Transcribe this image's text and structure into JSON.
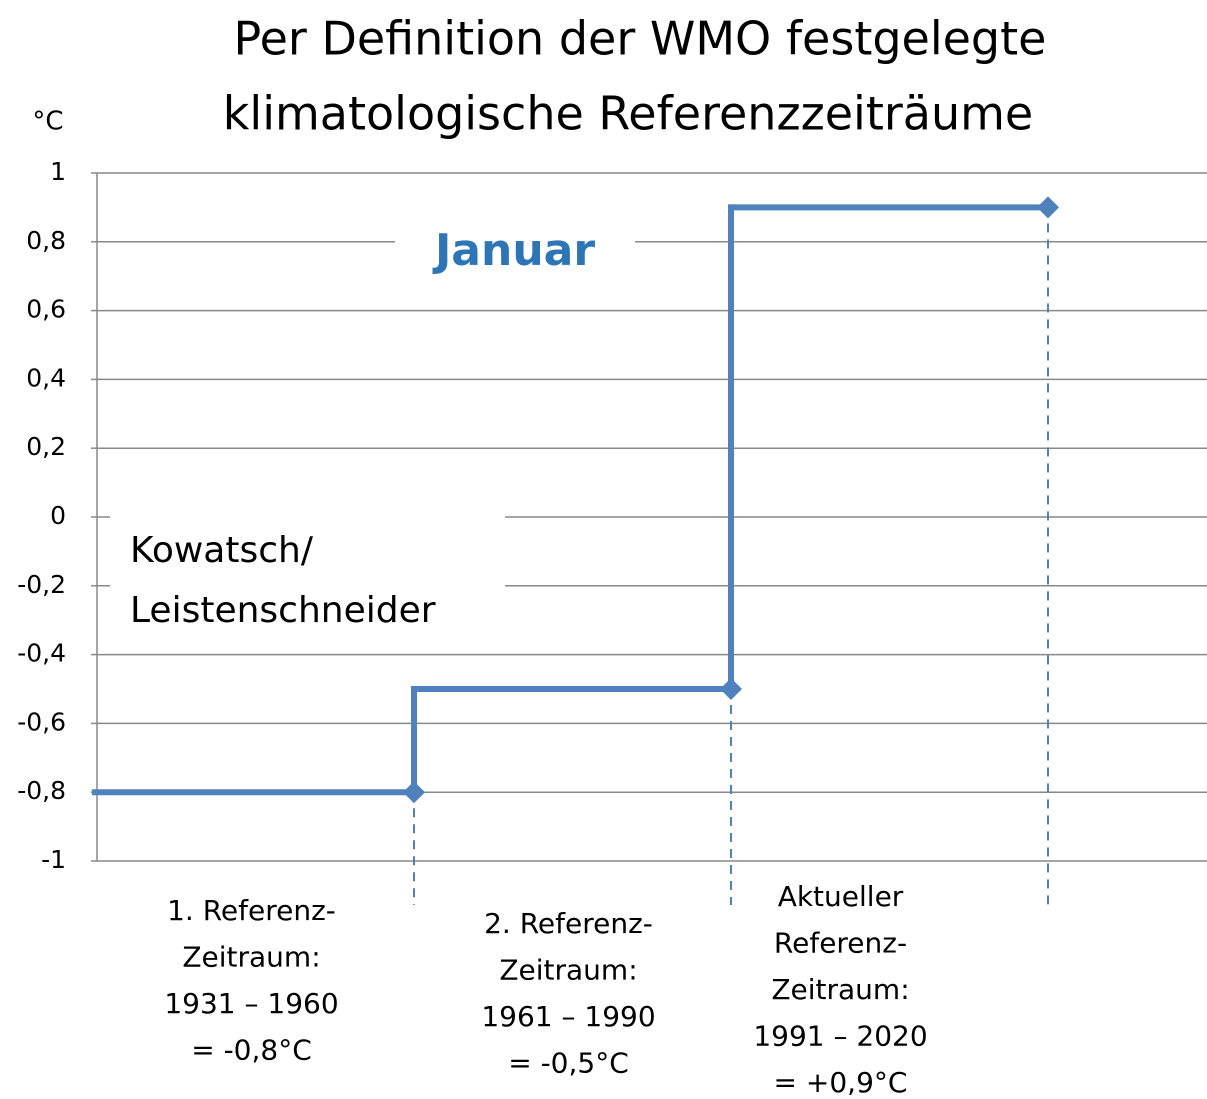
{
  "chart_data": {
    "type": "step",
    "title": [
      "Per Definition der WMO festgelegte",
      "klimatologische Referenzzeiträume"
    ],
    "y_label": "°C",
    "annotations": [
      [
        "Januar"
      ],
      [
        "Kowatsch/",
        "Leistenschneider"
      ]
    ],
    "categories": [
      [
        "1. Referenz-",
        "Zeitraum:",
        "1931 – 1960"
      ],
      [
        "2. Referenz-",
        "Zeitraum:",
        "1961 – 1990"
      ],
      [
        "Aktueller",
        "Referenz-",
        "Zeitraum:",
        "1991 – 2020"
      ]
    ],
    "values": [
      -0.8,
      -0.5,
      0.9
    ],
    "value_labels": [
      "= -0,8°C",
      "= -0,5°C",
      "= +0,9°C"
    ],
    "color": "#4f81bd",
    "ylim": [
      -1,
      1
    ],
    "yticks": [
      1,
      {
        "value": 0.8,
        "label": "0,8"
      },
      {
        "value": 0.6,
        "label": "0,6"
      },
      {
        "value": 0.4,
        "label": "0,4"
      },
      {
        "value": 0.2,
        "label": "0,2"
      },
      0,
      {
        "value": -0.2,
        "label": "-0,2"
      },
      {
        "value": -0.4,
        "label": "-0,4"
      },
      {
        "value": -0.6,
        "label": "-0,6"
      },
      {
        "value": -0.8,
        "label": "-0,8"
      },
      -1
    ],
    "grid": true
  }
}
